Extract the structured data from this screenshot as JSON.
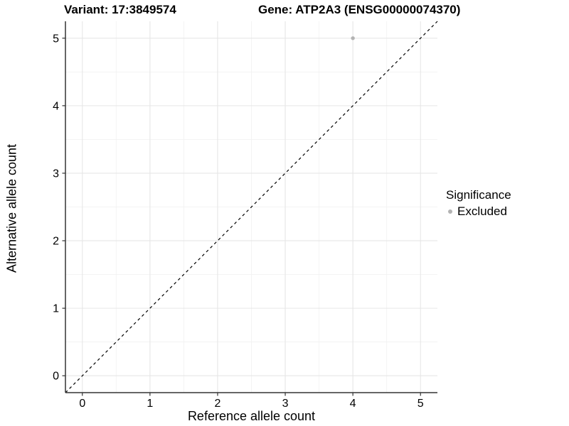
{
  "titles": {
    "variant": "Variant: 17:3849574",
    "gene": "Gene: ATP2A3 (ENSG00000074370)"
  },
  "chart_data": {
    "type": "scatter",
    "title_left": "Variant: 17:3849574",
    "title_right": "Gene: ATP2A3 (ENSG00000074370)",
    "xlabel": "Reference allele count",
    "ylabel": "Alternative allele count",
    "xlim": [
      -0.25,
      5.25
    ],
    "ylim": [
      -0.25,
      5.25
    ],
    "x_ticks": [
      0,
      1,
      2,
      3,
      4,
      5
    ],
    "y_ticks": [
      0,
      1,
      2,
      3,
      4,
      5
    ],
    "x_minor_ticks": [
      0.5,
      1.5,
      2.5,
      3.5,
      4.5
    ],
    "y_minor_ticks": [
      0.5,
      1.5,
      2.5,
      3.5,
      4.5
    ],
    "grid": "major+minor",
    "legend_position": "right",
    "legend": {
      "title": "Significance",
      "items": [
        {
          "label": "Excluded",
          "color": "#b3b3b3",
          "marker": "circle"
        }
      ]
    },
    "series": [
      {
        "name": "Excluded",
        "color": "#b3b3b3",
        "points": [
          {
            "x": 4,
            "y": 5
          }
        ]
      }
    ],
    "reference_line": {
      "slope": 1,
      "intercept": 0,
      "style": "dashed",
      "color": "#000000"
    }
  },
  "colors": {
    "background": "#ffffff",
    "grid_major": "#e6e6e6",
    "grid_minor": "#f1f1f1",
    "axis_line": "#333333",
    "tick_mark": "#333333",
    "text": "#000000",
    "point": "#b3b3b3"
  }
}
